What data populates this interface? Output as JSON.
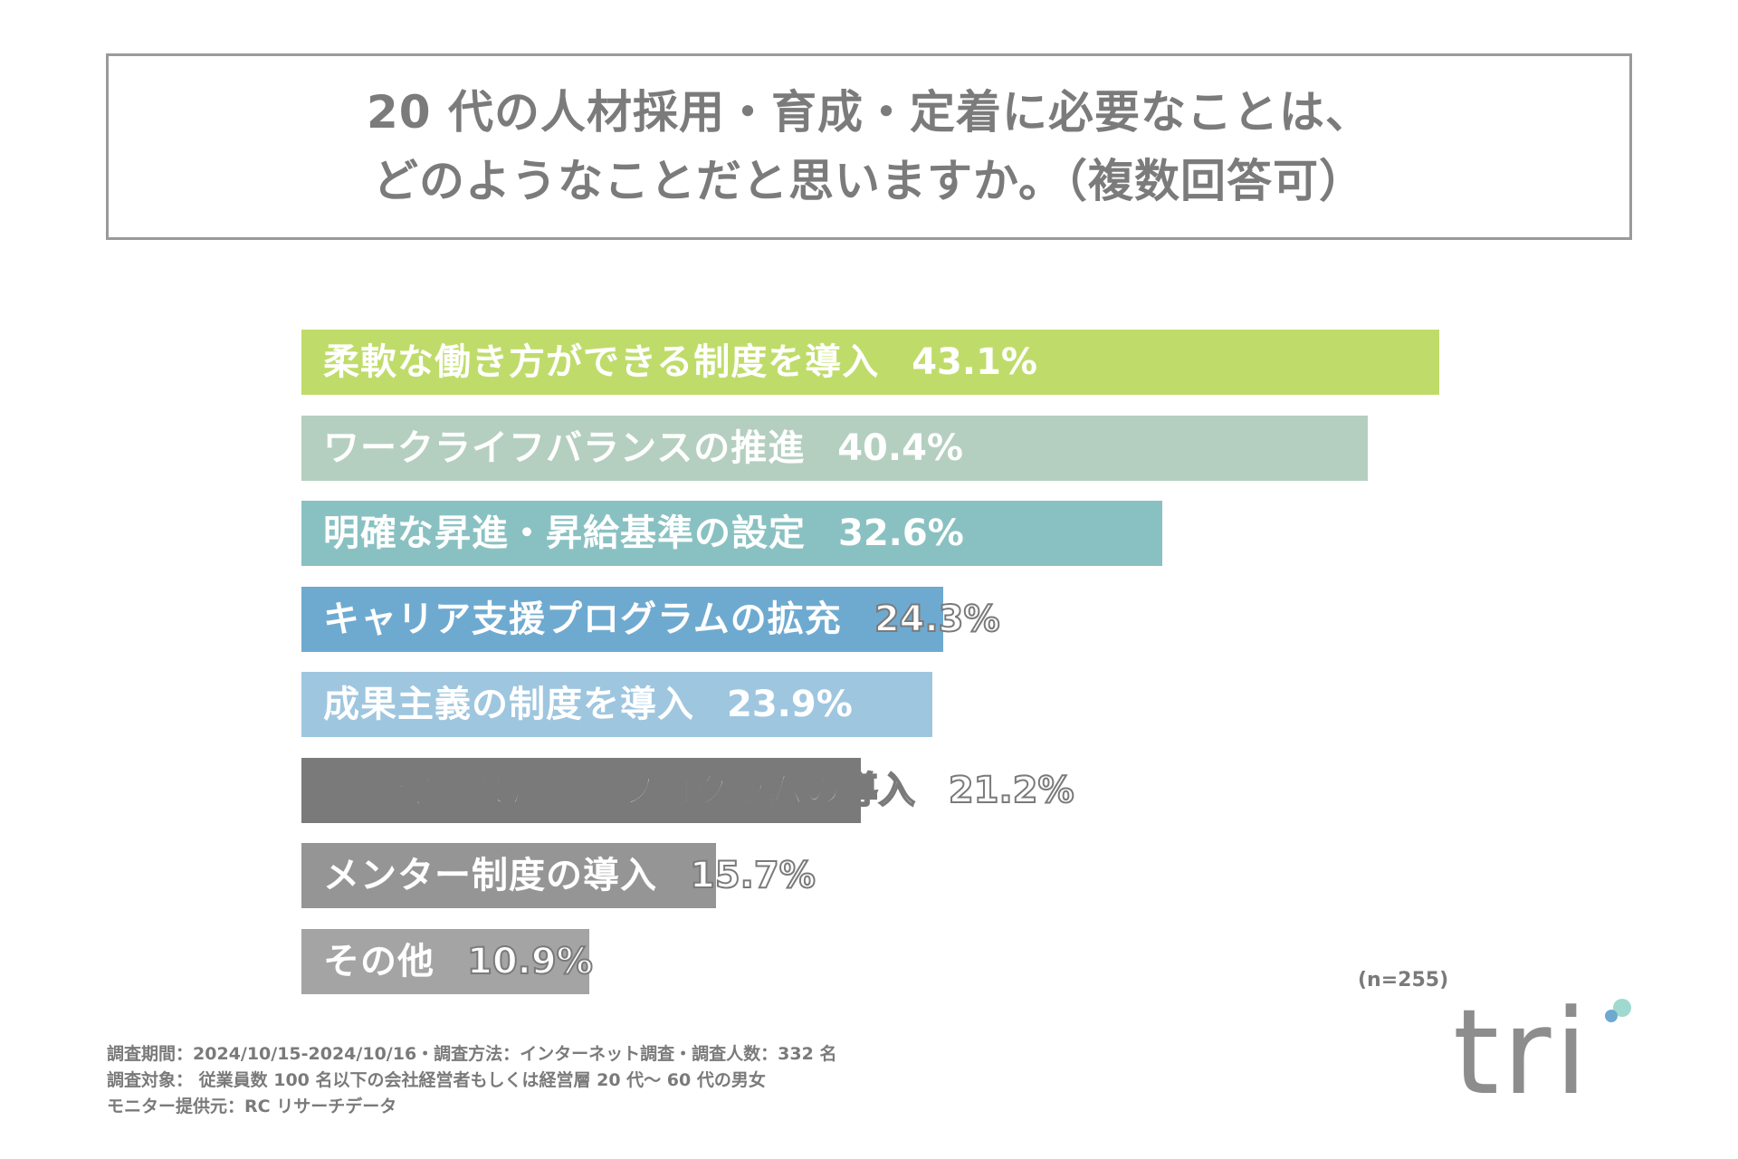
{
  "title": {
    "line1": "20 代の人材採用・育成・定着に必要なことは、",
    "line2": "どのようなことだと思いますか。（複数回答可）"
  },
  "chart_data": {
    "type": "bar",
    "orientation": "horizontal",
    "categories": [
      "柔軟な働き方ができる制度を導入",
      "ワークライフバランスの推進",
      "明確な昇進・昇給基準の設定",
      "キャリア支援プログラムの拡充",
      "成果主義の制度を導入",
      "個別化された育成プログラムの導入",
      "メンター制度の導入",
      "その他"
    ],
    "values": [
      43.1,
      40.4,
      32.6,
      24.3,
      23.9,
      21.2,
      15.7,
      10.9
    ],
    "value_labels": [
      "43.1%",
      "40.4%",
      "32.6%",
      "24.3%",
      "23.9%",
      "21.2%",
      "15.7%",
      "10.9%"
    ],
    "colors": [
      "#bfdc6a",
      "#b4cfbf",
      "#89c1c2",
      "#6eaad0",
      "#9fc6df",
      "#7a7a7a",
      "#959595",
      "#a4a4a4"
    ],
    "unit": "%",
    "xlim": [
      0,
      43.1
    ],
    "title": "20 代の人材採用・育成・定着に必要なことは、どのようなことだと思いますか。（複数回答可）"
  },
  "sample_size": "(n=255)",
  "footnotes": {
    "line1": "調査期間：2024/10/15-2024/10/16・調査方法：インターネット調査・調査人数：332 名",
    "line2": "調査対象： 従業員数 100 名以下の会社経営者もしくは経営層 20 代〜 60 代の男女",
    "line3": "モニター提供元：RC リサーチデータ"
  },
  "logo": {
    "text": "tri",
    "dot_colors": [
      "#9fd9cf",
      "#6eaad0"
    ]
  }
}
